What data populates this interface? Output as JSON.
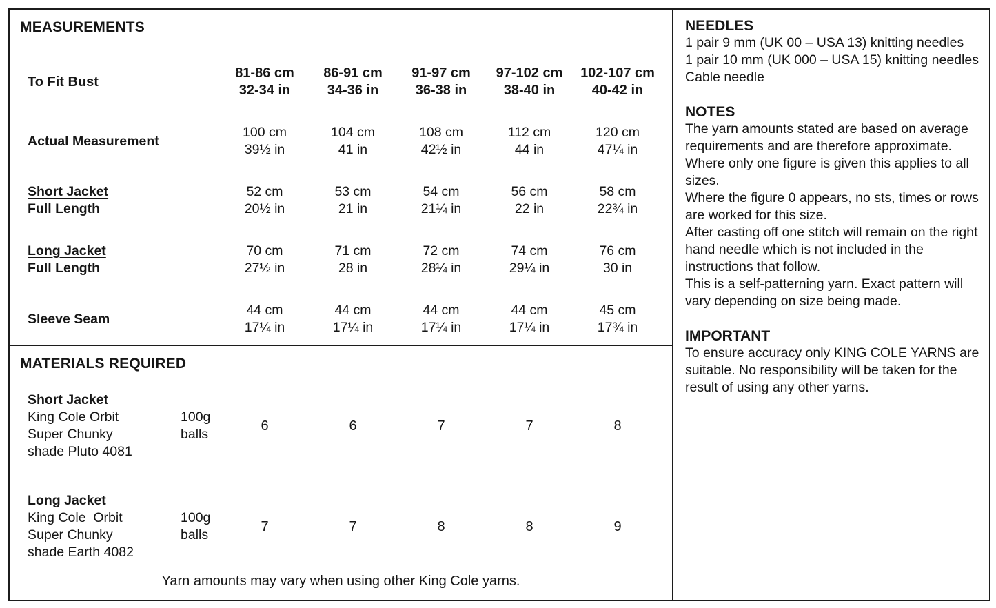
{
  "measurements": {
    "title": "MEASUREMENTS",
    "header": {
      "label": "To Fit Bust",
      "columns": [
        {
          "cm": "81-86 cm",
          "in": "32-34 in"
        },
        {
          "cm": "86-91 cm",
          "in": "34-36 in"
        },
        {
          "cm": "91-97 cm",
          "in": "36-38 in"
        },
        {
          "cm": "97-102 cm",
          "in": "38-40 in"
        },
        {
          "cm": "102-107 cm",
          "in": "40-42 in"
        }
      ]
    },
    "rows": [
      {
        "label1": "Actual Measurement",
        "label2": "",
        "values": [
          {
            "cm": "100 cm",
            "in": "39½ in"
          },
          {
            "cm": "104 cm",
            "in": "41 in"
          },
          {
            "cm": "108 cm",
            "in": "42½ in"
          },
          {
            "cm": "112 cm",
            "in": "44 in"
          },
          {
            "cm": "120 cm",
            "in": "47¼ in"
          }
        ]
      },
      {
        "label1": "Short Jacket",
        "label2": "Full Length",
        "values": [
          {
            "cm": "52 cm",
            "in": "20½ in"
          },
          {
            "cm": "53 cm",
            "in": "21 in"
          },
          {
            "cm": "54 cm",
            "in": "21¼ in"
          },
          {
            "cm": "56 cm",
            "in": "22 in"
          },
          {
            "cm": "58 cm",
            "in": "22¾ in"
          }
        ]
      },
      {
        "label1": "Long Jacket",
        "label2": "Full Length",
        "values": [
          {
            "cm": "70 cm",
            "in": "27½ in"
          },
          {
            "cm": "71 cm",
            "in": "28 in"
          },
          {
            "cm": "72 cm",
            "in": "28¼ in"
          },
          {
            "cm": "74 cm",
            "in": "29¼ in"
          },
          {
            "cm": "76 cm",
            "in": "30 in"
          }
        ]
      },
      {
        "label1": "Sleeve Seam",
        "label2": "",
        "values": [
          {
            "cm": "44 cm",
            "in": "17¼ in"
          },
          {
            "cm": "44 cm",
            "in": "17¼ in"
          },
          {
            "cm": "44 cm",
            "in": "17¼ in"
          },
          {
            "cm": "44 cm",
            "in": "17¼ in"
          },
          {
            "cm": "45 cm",
            "in": "17¾ in"
          }
        ]
      }
    ]
  },
  "materials": {
    "title": "MATERIALS REQUIRED",
    "items": [
      {
        "name": "Short Jacket",
        "line1": "King Cole Orbit",
        "line2": "Super Chunky",
        "line3": "shade Pluto 4081",
        "unit1": "100g",
        "unit2": "balls",
        "values": [
          "6",
          "6",
          "7",
          "7",
          "8"
        ]
      },
      {
        "name": "Long Jacket",
        "line1": "King Cole  Orbit",
        "line2": "Super Chunky",
        "line3": "shade Earth 4082",
        "unit1": "100g",
        "unit2": "balls",
        "values": [
          "7",
          "7",
          "8",
          "8",
          "9"
        ]
      }
    ],
    "footnote": "Yarn amounts may vary when using other King Cole yarns."
  },
  "info": {
    "needles": {
      "title": "NEEDLES",
      "items": [
        "1 pair 9 mm (UK 00 – USA 13) knitting needles",
        "1 pair 10 mm (UK 000 – USA 15) knitting needles",
        "Cable needle"
      ]
    },
    "notes": {
      "title": "NOTES",
      "paragraphs": [
        "The yarn amounts stated are based on average requirements and are therefore approximate.",
        "Where only one figure is given this applies to all sizes.",
        "Where the figure 0 appears, no sts, times or rows are worked for this size.",
        "After casting off one stitch will remain on the right hand needle which is not included in the instructions that follow.",
        "This is a self-patterning yarn. Exact pattern will vary depending on size being made."
      ]
    },
    "important": {
      "title": "IMPORTANT",
      "text": "To ensure accuracy only KING COLE YARNS are suitable. No responsibility will be taken for the result of using any other yarns."
    }
  }
}
